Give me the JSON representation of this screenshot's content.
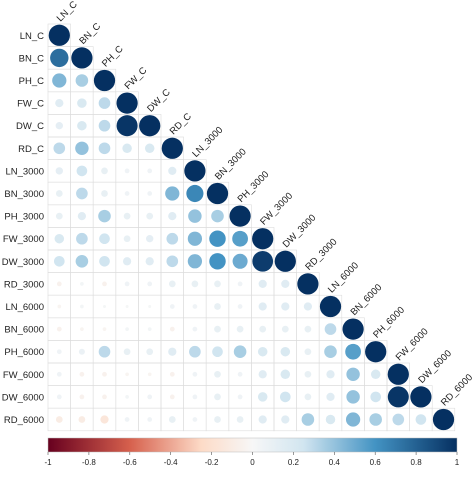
{
  "chart_data": {
    "type": "heatmap",
    "shape": "lower-triangle-circles",
    "variables": [
      "LN_C",
      "BN_C",
      "PH_C",
      "FW_C",
      "DW_C",
      "RD_C",
      "LN_3000",
      "BN_3000",
      "PH_3000",
      "FW_3000",
      "DW_3000",
      "RD_3000",
      "LN_6000",
      "BN_6000",
      "PH_6000",
      "FW_6000",
      "DW_6000",
      "RD_6000"
    ],
    "matrix": [
      [
        1
      ],
      [
        0.75,
        1
      ],
      [
        0.45,
        0.35,
        1
      ],
      [
        0.15,
        0.2,
        0.3,
        1
      ],
      [
        0.12,
        0.2,
        0.3,
        0.98,
        1
      ],
      [
        0.3,
        0.4,
        0.3,
        0.2,
        0.2,
        1
      ],
      [
        0.12,
        0.25,
        0.1,
        0.05,
        0.05,
        0.15,
        1
      ],
      [
        0.1,
        0.3,
        0.1,
        0.05,
        0.05,
        0.45,
        0.65,
        1
      ],
      [
        0.1,
        0.15,
        0.35,
        0.1,
        0.1,
        0.15,
        0.4,
        0.35,
        1
      ],
      [
        0.2,
        0.3,
        0.25,
        0.1,
        0.12,
        0.3,
        0.45,
        0.6,
        0.55,
        1
      ],
      [
        0.25,
        0.35,
        0.25,
        0.15,
        0.15,
        0.3,
        0.45,
        0.6,
        0.5,
        0.95,
        1
      ],
      [
        -0.05,
        0.03,
        -0.05,
        0.05,
        0.05,
        0.1,
        0.1,
        0.1,
        0.05,
        0.15,
        0.15,
        1
      ],
      [
        -0.03,
        0.03,
        0.02,
        0.02,
        0.02,
        0.05,
        0.05,
        0.1,
        0.05,
        0.15,
        0.15,
        0.15,
        1
      ],
      [
        -0.05,
        -0.03,
        -0.03,
        0.03,
        0.03,
        -0.05,
        0.05,
        0.1,
        0.1,
        0.1,
        0.1,
        0.1,
        0.3,
        1
      ],
      [
        0.05,
        0.08,
        0.3,
        0.1,
        0.1,
        0.15,
        0.3,
        0.25,
        0.35,
        0.2,
        0.2,
        0.1,
        0.35,
        0.55,
        1
      ],
      [
        0.05,
        -0.05,
        -0.05,
        -0.03,
        -0.03,
        -0.05,
        0.05,
        0.1,
        0.05,
        0.15,
        0.2,
        0.1,
        0.15,
        0.4,
        0.2,
        1
      ],
      [
        0.05,
        -0.05,
        -0.05,
        0.03,
        0.05,
        -0.05,
        0.05,
        0.1,
        0.05,
        0.2,
        0.25,
        0.1,
        0.15,
        0.4,
        0.25,
        0.98,
        1
      ],
      [
        -0.1,
        -0.1,
        -0.15,
        0.05,
        0.05,
        0.1,
        0.05,
        0.1,
        0.1,
        0.15,
        0.15,
        0.35,
        0.2,
        0.45,
        0.35,
        0.3,
        0.25,
        1
      ]
    ],
    "colorbar": {
      "range": [
        -1,
        1
      ],
      "ticks": [
        "-1",
        "-0.8",
        "-0.6",
        "-0.4",
        "-0.2",
        "0",
        "0.2",
        "0.4",
        "0.6",
        "0.8",
        "1"
      ],
      "colors": {
        "neg_strong": "#67001f",
        "neg_mid": "#d6604d",
        "neg_light": "#fddbc7",
        "neutral": "#f7f7f7",
        "pos_light": "#d1e5f0",
        "pos_mid": "#4393c3",
        "pos_strong": "#053061"
      }
    },
    "grid": true,
    "title": "",
    "xlabel": "",
    "ylabel": ""
  }
}
